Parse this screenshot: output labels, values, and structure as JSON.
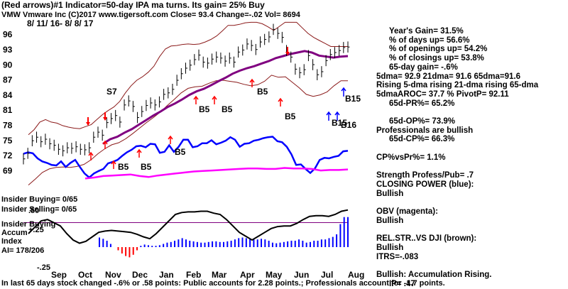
{
  "header": {
    "line1": "(Red arrows)#1 Indicator=50-day IPA ma turns. Its gain= 25% Buy",
    "line2": "VMW   Vmware Inc  (C)2017  www.tigersoft.com    Close=  93.4  Change=-.02  Vol=  8694",
    "date_range": "8/ 11/ 16-  8/ 8/ 17"
  },
  "stats": [
    {
      "text": "Year's Gain= 31.5%",
      "indent": true
    },
    {
      "text": "% of days up= 56.6%",
      "indent": true
    },
    {
      "text": "% of openings up= 54.2%",
      "indent": true
    },
    {
      "text": "% of closings up= 53.8%",
      "indent": true
    },
    {
      "text": "65-day gain= -.6%",
      "indent": true
    },
    {
      "text": "5dma= 92.9 21dma= 91.6 65dma=91.6",
      "indent": false
    },
    {
      "text": "Rising 5-dma rising 21-dma rising 65-dma",
      "indent": false
    },
    {
      "text": "5dmaAROC=  37.7 %  PivotP=  92.11",
      "indent": false
    },
    {
      "text": "65d-PR%= 65.2%",
      "indent": true
    },
    {
      "text": "",
      "indent": false
    },
    {
      "text": "65d-OP%= 73.9%",
      "indent": true
    },
    {
      "text": "Professionals are bullish",
      "indent": false
    },
    {
      "text": "65d-CP%= 66.3%",
      "indent": true
    },
    {
      "text": "",
      "indent": false
    },
    {
      "text": "CP%vsPr%=  1.1%",
      "indent": false
    },
    {
      "text": "",
      "indent": false
    },
    {
      "text": "Strength Profess/Pub= .7",
      "indent": false
    },
    {
      "text": "CLOSING POWER (blue):",
      "indent": false
    },
    {
      "text": "Bullish",
      "indent": false
    },
    {
      "text": "",
      "indent": false
    },
    {
      "text": "OBV (magenta):",
      "indent": false
    },
    {
      "text": "Bullish",
      "indent": false
    },
    {
      "text": "",
      "indent": false
    },
    {
      "text": "REL.STR..VS DJI (brown):",
      "indent": false
    },
    {
      "text": "Bullish",
      "indent": false
    },
    {
      "text": "ITRS=-.083",
      "indent": false
    },
    {
      "text": "",
      "indent": false
    },
    {
      "text": "Bullish: Accumulation Rising.",
      "indent": false
    },
    {
      "text": "IP=  .47",
      "indent": true
    }
  ],
  "footer": "In last 65 days stock changed -.6% or .58 points:  Public accounts for  2.28 points.;  Professionals account for -1.7 points.",
  "colors": {
    "price": "#000000",
    "bands": "#8b1a1a",
    "ma65": "#800080",
    "closing_power": "#0000ff",
    "obv": "#ff00ff",
    "red_arrow": "#ff0000",
    "blue_arrow": "#0000ff",
    "accum_line": "#800080",
    "accum_bars": "#0000ff"
  },
  "chart_data": {
    "type": "line",
    "title": "VMW Vmware Inc",
    "price_panel": {
      "y_ticks": [
        69,
        72,
        75,
        78,
        81,
        84,
        87,
        90,
        93,
        96
      ],
      "ylim": [
        67.5,
        98.5
      ],
      "closes": [
        71.2,
        72.3,
        74.8,
        75.5,
        74.6,
        75.1,
        74.2,
        73.9,
        73.1,
        72.8,
        73.4,
        73.3,
        73.6,
        73.1,
        73.0,
        73.4,
        75.5,
        76.5,
        75.9,
        78.4,
        79.2,
        79.8,
        78.5,
        81.9,
        82.7,
        81.6,
        79.4,
        80.6,
        81.8,
        82.3,
        81.9,
        82.5,
        84.0,
        84.3,
        85.0,
        86.8,
        88.1,
        89.2,
        89.8,
        90.9,
        91.8,
        90.4,
        90.2,
        91.0,
        91.4,
        91.2,
        90.6,
        91.2,
        90.4,
        92.4,
        92.8,
        94.0,
        93.7,
        92.9,
        94.4,
        94.9,
        95.4,
        96.9,
        96.1,
        95.3,
        92.7,
        91.4,
        89.0,
        88.3,
        88.9,
        91.7,
        89.9,
        87.9,
        88.5,
        90.7,
        91.9,
        92.3,
        92.7,
        93.3,
        93.4
      ],
      "upper_band": [
        76,
        77,
        78.5,
        79,
        78.5,
        78.3,
        77.8,
        77.5,
        77.3,
        77.2,
        77.6,
        78,
        79,
        80,
        80.8,
        81.5,
        82.6,
        84.3,
        85.7,
        86.8,
        87.5,
        88.4,
        89.6,
        91.5,
        93,
        93.6,
        93.7,
        93.9,
        94,
        93.9,
        94,
        94.4,
        94.9,
        95.6,
        96.6,
        97.7,
        97.7,
        97.9,
        98.2,
        98.3,
        98.3,
        98,
        97.4,
        96.7,
        97.5,
        98.3,
        98.3,
        98.3,
        97.2,
        96.1,
        95.3,
        94.7,
        94.1,
        93.5,
        93.5,
        93.5,
        93.5
      ],
      "lower_band": [
        66,
        67.2,
        68.5,
        69.2,
        69.5,
        69.6,
        69.5,
        69.7,
        70.1,
        71,
        72.2,
        73.2,
        74,
        74.4,
        75.2,
        76.2,
        77.3,
        78.4,
        79.4,
        80.5,
        81.8,
        83,
        84.3,
        85.2,
        85.5,
        85.6,
        86.2,
        86.7,
        86.8,
        86.6,
        86.4,
        86,
        85.7,
        85.9,
        86.6,
        87.8,
        87.4,
        87.5,
        86.4,
        85.3,
        84,
        83.6,
        83.9,
        84.5,
        85.7,
        86.7,
        86.7
      ],
      "ma65": [
        74.2,
        75.1,
        75.6,
        76.4,
        77.1,
        78,
        78.9,
        79.8,
        80.6,
        81.5,
        82.2,
        83,
        83.9,
        84.6,
        85.1,
        85.8,
        86.6,
        87.3,
        88.1,
        88.7,
        89.2,
        89.6,
        90.1,
        90.6,
        91.2,
        91.6,
        92,
        92.3,
        92.6,
        92.3,
        91.7,
        91.5,
        91.3,
        91.5,
        91.6
      ],
      "closing_power": [
        72.2,
        72.5,
        72.3,
        71.3,
        70.7,
        70.4,
        70.0,
        69.9,
        70.7,
        69.6,
        70.4,
        71.0,
        69.6,
        68.3,
        67.5,
        68.3,
        68.8,
        69.2,
        70.3,
        70.6,
        71.0,
        71.8,
        72.5,
        73.0,
        73.7,
        73.8,
        73.5,
        74.2,
        74.1,
        72.4,
        72.6,
        73.9,
        72.6,
        73.6,
        75.0,
        75.0,
        73.5,
        73.7,
        74.3,
        74.3,
        74.9,
        74.1,
        74.4,
        74.8,
        75.5,
        75.0,
        73.6,
        74.2,
        74.3,
        74.8,
        75.0,
        75.3,
        75.5,
        75.6,
        74.7,
        74.5,
        73.6,
        72.1,
        70.0,
        70.1,
        69.2,
        68.4,
        69.3,
        71.0,
        71.4,
        71.3,
        71.6,
        71.8,
        72.7,
        72.8
      ],
      "obv": [
        67.3,
        67.5,
        67.8,
        67.9,
        68.0,
        68.1,
        67.8,
        67.6,
        67.9,
        68.1,
        68.3,
        68.5,
        68.7,
        68.8,
        68.9,
        69.0,
        69.1,
        69.2,
        69.3,
        69.3,
        69.2,
        69.2,
        69.4,
        69.3,
        69.3,
        69.2,
        68.9,
        69.0,
        69.0,
        69.1
      ],
      "annotations": [
        "S7",
        "B5",
        "B5",
        "B5",
        "B5",
        "B5",
        "B5",
        "B5",
        "B15",
        "B15",
        "B16"
      ]
    },
    "accumulation_panel": {
      "title": "Insider Buying Accum Index",
      "y_ticks": [
        ".50",
        "+.25",
        "-.25"
      ],
      "ylim": [
        -0.35,
        0.55
      ],
      "line": [
        0.1,
        0.2,
        0.3,
        0.32,
        0.27,
        0.22,
        0.1,
        0.0,
        -0.05,
        -0.02,
        0.05,
        0.12,
        0.14,
        0.15,
        0.14,
        0.13,
        0.12,
        0.09,
        0.05,
        0.02,
        0.1,
        0.2,
        0.3,
        0.4,
        0.43,
        0.44,
        0.44,
        0.45,
        0.45,
        0.42,
        0.4,
        0.32,
        0.22,
        0.12,
        0.06,
        0.0,
        0.06,
        0.12,
        0.18,
        0.21,
        0.22,
        0.22,
        0.26,
        0.32,
        0.37,
        0.38,
        0.38,
        0.37,
        0.4,
        0.45,
        0.47
      ],
      "bars": [
        0.15,
        0.13,
        0.1,
        0.05,
        0.0,
        -0.05,
        -0.1,
        -0.14,
        -0.16,
        -0.12,
        -0.05,
        0.02,
        0.04,
        0.03,
        0.02,
        0.02,
        0.03,
        0.05,
        0.07,
        0.08,
        0.1,
        0.12,
        0.14,
        0.12,
        0.1,
        0.09,
        0.08,
        0.07,
        0.07,
        0.08,
        0.09,
        0.09,
        0.08,
        0.08,
        0.09,
        0.1,
        0.12,
        0.14,
        0.15,
        0.14,
        0.13,
        0.12,
        0.12,
        0.13,
        0.12,
        0.1,
        0.07,
        0.06,
        0.07,
        0.08,
        0.09,
        0.1,
        0.1,
        0.12,
        0.1,
        0.07,
        0.08,
        0.1,
        0.1,
        0.12,
        0.12,
        0.14,
        0.16,
        0.2,
        0.36,
        0.47,
        0.47
      ]
    },
    "x_labels": [
      "Sep",
      "Oct",
      "Nov",
      "Dec",
      "Jan",
      "Feb",
      "Mar",
      "Apr",
      "May",
      "Jun",
      "Jul",
      "Aug"
    ],
    "insider": {
      "buying": "Insider Buying= 0/65",
      "selling": "Insider Selling= 0/65",
      "ai": "AI= 178/206",
      "accum_label_1": "Insider Buying",
      "accum_label_2": "Accum",
      "accum_label_3": "Index"
    }
  }
}
